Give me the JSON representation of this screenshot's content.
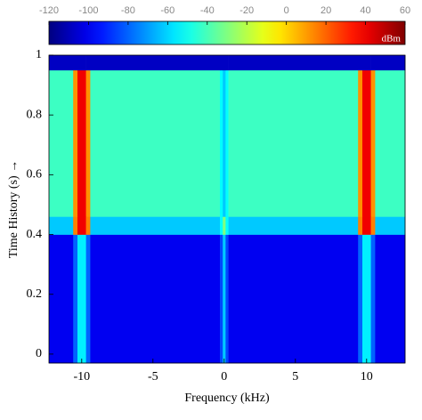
{
  "chart_data": {
    "type": "heatmap",
    "xlabel": "Frequency (kHz)",
    "ylabel": "Time History (s) →",
    "xbins": [
      -12.3,
      -10.6,
      -10.3,
      -9.7,
      -9.4,
      -0.3,
      -0.1,
      0.1,
      0.3,
      9.4,
      9.7,
      10.3,
      10.6,
      12.7
    ],
    "ybins": [
      -0.03,
      0.4,
      0.46,
      0.95,
      1.0
    ],
    "values": [
      [
        -100,
        -80,
        -55,
        -80,
        -100,
        -85,
        -62,
        -85,
        -100,
        -80,
        -55,
        -80,
        -100
      ],
      [
        -62,
        15,
        40,
        15,
        -62,
        -52,
        -30,
        -52,
        -62,
        15,
        40,
        15,
        -62
      ],
      [
        -42,
        12,
        40,
        12,
        -42,
        -52,
        -62,
        -52,
        -42,
        12,
        40,
        12,
        -42
      ],
      [
        -108,
        -108,
        -108,
        -108,
        -108,
        -108,
        -108,
        -108,
        -108,
        -108,
        -108,
        -108,
        -108
      ]
    ],
    "xlim": [
      -12.3,
      12.7
    ],
    "ylim": [
      -0.03,
      1.0
    ],
    "xticks": [
      -10,
      -5,
      0,
      5,
      10
    ],
    "yticks": [
      0,
      0.2,
      0.4,
      0.6,
      0.8,
      1
    ],
    "colorbar": {
      "label": "dBm",
      "colormap": "jet",
      "clim": [
        -120,
        60
      ],
      "ticks": [
        -120,
        -100,
        -80,
        -60,
        -40,
        -20,
        0,
        20,
        40,
        60
      ]
    }
  }
}
